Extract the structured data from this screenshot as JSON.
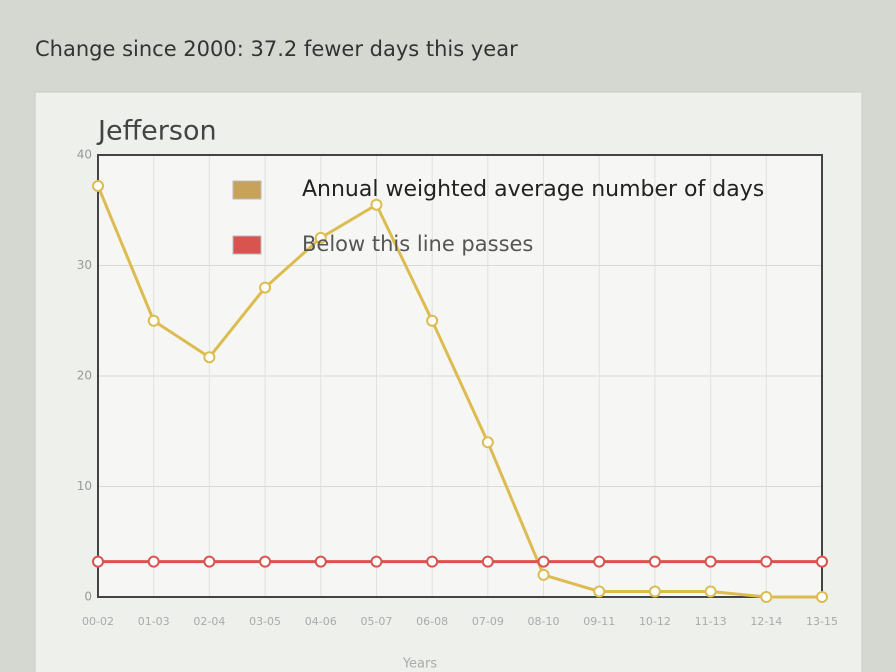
{
  "header": {
    "text": "Change since 2000: 37.2 fewer days this year"
  },
  "chart_data": {
    "type": "line",
    "title": "Jefferson",
    "x_label": "Years",
    "categories": [
      "00-02",
      "01-03",
      "02-04",
      "03-05",
      "04-06",
      "05-07",
      "06-08",
      "07-09",
      "08-10",
      "09-11",
      "10-12",
      "11-13",
      "12-14",
      "13-15"
    ],
    "series": [
      {
        "name": "Annual weighted average number of days",
        "color": "#dcbc50",
        "legend_color": "#c9a25a",
        "values": [
          37.2,
          25,
          21.7,
          28,
          32.5,
          35.5,
          25,
          14,
          2,
          0.5,
          0.5,
          0.5,
          0,
          0
        ]
      },
      {
        "name": "Below this line passes",
        "color": "#d9534f",
        "legend_color": "#d9534f",
        "values": [
          3.2,
          3.2,
          3.2,
          3.2,
          3.2,
          3.2,
          3.2,
          3.2,
          3.2,
          3.2,
          3.2,
          3.2,
          3.2,
          3.2
        ]
      }
    ],
    "ylim": [
      0,
      40
    ],
    "yticks": [
      0,
      10,
      20,
      30,
      40
    ],
    "grid": true
  }
}
